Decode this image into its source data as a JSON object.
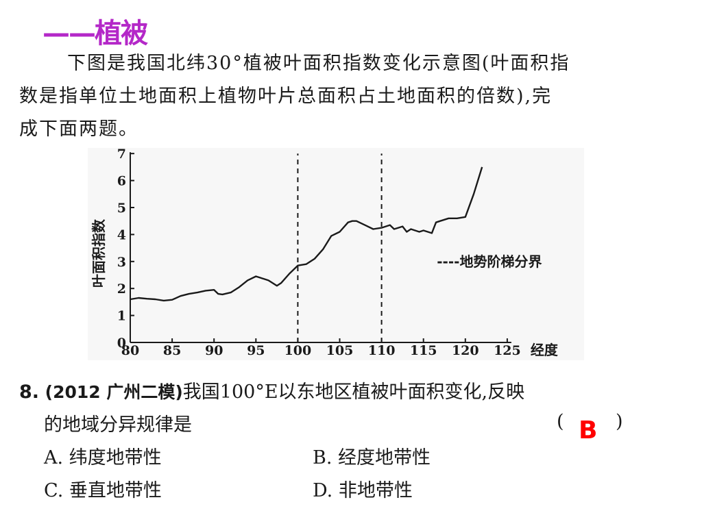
{
  "heading": "——植被",
  "paragraph": {
    "line1": "下图是我国北纬30°植被叶面积指数变化示意图(叶面积指",
    "line2": "数是指单位土地面积上植物叶片总面积占土地面积的倍数),完",
    "line3": "成下面两题。"
  },
  "chart_data": {
    "type": "line",
    "xlabel": "经度",
    "ylabel": "叶面积指数",
    "xlim": [
      80,
      125
    ],
    "ylim": [
      0,
      7
    ],
    "x_ticks": [
      "80",
      "85",
      "90",
      "95",
      "100",
      "105",
      "110",
      "115",
      "120",
      "125"
    ],
    "y_ticks": [
      "0",
      "1",
      "2",
      "3",
      "4",
      "5",
      "6",
      "7"
    ],
    "legend": {
      "label": "----地势阶梯分界",
      "placement": "right"
    },
    "boundaries": [
      100,
      110
    ],
    "series": [
      {
        "x": [
          80,
          81,
          82,
          83,
          84,
          85,
          86,
          87,
          88,
          89,
          90,
          90.5,
          91,
          92,
          93,
          94,
          95,
          96,
          96.5,
          97,
          97.5,
          98,
          99,
          100,
          101,
          102,
          103,
          104,
          105,
          106,
          106.5,
          107,
          108,
          109,
          110,
          110.5,
          111,
          111.5,
          112,
          112.5,
          113,
          113.5,
          114,
          114.5,
          115,
          116,
          116.5,
          117,
          118,
          119,
          120,
          121,
          122
        ],
        "y": [
          1.6,
          1.65,
          1.62,
          1.6,
          1.55,
          1.58,
          1.72,
          1.8,
          1.85,
          1.92,
          1.95,
          1.8,
          1.78,
          1.85,
          2.05,
          2.3,
          2.45,
          2.35,
          2.3,
          2.2,
          2.1,
          2.2,
          2.55,
          2.85,
          2.9,
          3.1,
          3.45,
          3.95,
          4.1,
          4.45,
          4.5,
          4.5,
          4.35,
          4.2,
          4.25,
          4.3,
          4.35,
          4.2,
          4.25,
          4.3,
          4.1,
          4.2,
          4.15,
          4.1,
          4.15,
          4.05,
          4.45,
          4.5,
          4.6,
          4.6,
          4.65,
          5.5,
          6.5
        ]
      }
    ]
  },
  "question": {
    "number": "8.",
    "source": "(2012 广州二模)",
    "line1_text": "我国100°E以东地区植被叶面积变化,反映",
    "line2_text": "的地域分异规律是",
    "paren_open": "(",
    "paren_close": ")",
    "answer": "B",
    "options": {
      "a": "A. 纬度地带性",
      "b": "B. 经度地带性",
      "c": "C. 垂直地带性",
      "d": "D. 非地带性"
    }
  }
}
